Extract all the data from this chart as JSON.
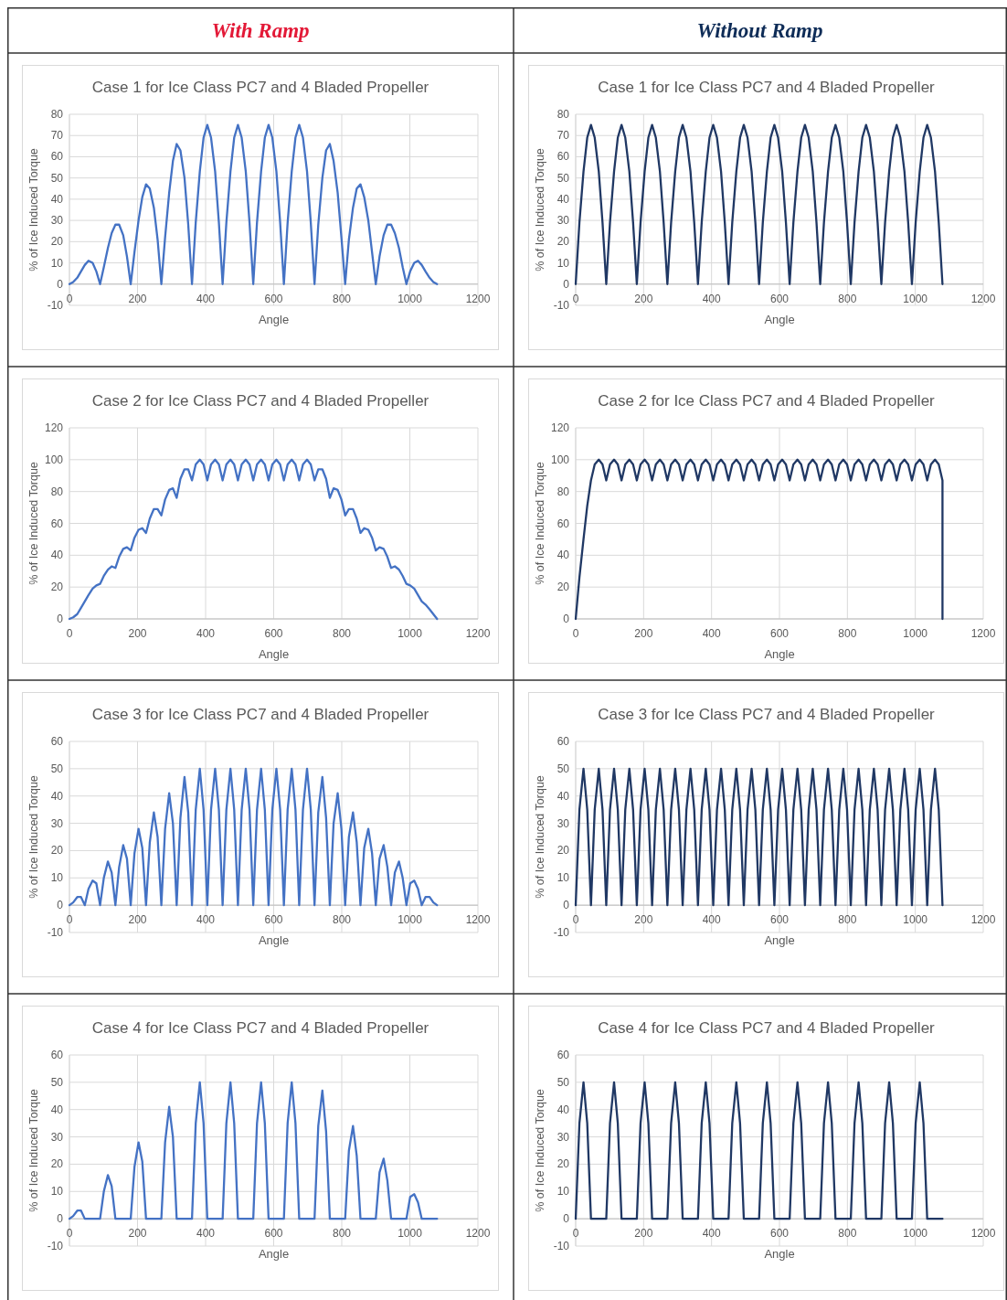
{
  "chart_data": [
    {
      "type": "other",
      "title": "With Ramp"
    },
    {
      "type": "other",
      "title": "Without Ramp"
    },
    {
      "type": "line",
      "title": "Case 1 for Ice Class PC7 and 4 Bladed Propeller",
      "xlabel": "Angle",
      "ylabel": "% of Ice Induced Torque",
      "xlim": [
        0,
        1200
      ],
      "xticks": [
        0,
        200,
        400,
        600,
        800,
        1000,
        1200
      ],
      "ylim": [
        -10,
        80
      ],
      "yticks": [
        -10,
        0,
        10,
        20,
        30,
        40,
        50,
        60,
        70,
        80
      ],
      "grid": true,
      "x": [
        0,
        11,
        23,
        34,
        45,
        56,
        68,
        79,
        90,
        101,
        113,
        124,
        135,
        146,
        158,
        169,
        180,
        191,
        203,
        214,
        225,
        236,
        248,
        259,
        270,
        281,
        293,
        304,
        315,
        326,
        338,
        349,
        360,
        371,
        383,
        394,
        405,
        416,
        428,
        439,
        450,
        461,
        473,
        484,
        495,
        506,
        518,
        529,
        540,
        551,
        563,
        574,
        585,
        596,
        608,
        619,
        630,
        641,
        653,
        664,
        675,
        686,
        698,
        709,
        720,
        731,
        743,
        754,
        765,
        776,
        788,
        799,
        810,
        821,
        833,
        844,
        855,
        866,
        878,
        889,
        900,
        911,
        923,
        934,
        945,
        956,
        968,
        979,
        990,
        1001,
        1013,
        1024,
        1035,
        1046,
        1058,
        1069,
        1080
      ],
      "series": [
        {
          "color": "#4472c4",
          "values": [
            0,
            1,
            3,
            6,
            9,
            11,
            10,
            6,
            0,
            8,
            17,
            24,
            28,
            28,
            23,
            13,
            0,
            15,
            30,
            41,
            47,
            45,
            36,
            21,
            0,
            22,
            43,
            58,
            66,
            63,
            50,
            28,
            0,
            29,
            53,
            69,
            75,
            69,
            53,
            29,
            0,
            29,
            53,
            69,
            75,
            69,
            53,
            29,
            0,
            29,
            53,
            69,
            75,
            69,
            53,
            29,
            0,
            29,
            53,
            69,
            75,
            69,
            53,
            29,
            0,
            28,
            50,
            63,
            66,
            58,
            43,
            22,
            0,
            21,
            36,
            45,
            47,
            41,
            30,
            15,
            0,
            13,
            23,
            28,
            28,
            24,
            17,
            8,
            0,
            6,
            10,
            11,
            9,
            6,
            3,
            1,
            0
          ]
        }
      ]
    },
    {
      "type": "line",
      "title": "Case 1 for Ice Class PC7 and 4 Bladed Propeller",
      "xlabel": "Angle",
      "ylabel": "% of Ice Induced Torque",
      "xlim": [
        0,
        1200
      ],
      "xticks": [
        0,
        200,
        400,
        600,
        800,
        1000,
        1200
      ],
      "ylim": [
        -10,
        80
      ],
      "yticks": [
        -10,
        0,
        10,
        20,
        30,
        40,
        50,
        60,
        70,
        80
      ],
      "grid": true,
      "x": [
        0,
        11,
        23,
        34,
        45,
        56,
        68,
        79,
        90,
        101,
        113,
        124,
        135,
        146,
        158,
        169,
        180,
        191,
        203,
        214,
        225,
        236,
        248,
        259,
        270,
        281,
        293,
        304,
        315,
        326,
        338,
        349,
        360,
        371,
        383,
        394,
        405,
        416,
        428,
        439,
        450,
        461,
        473,
        484,
        495,
        506,
        518,
        529,
        540,
        551,
        563,
        574,
        585,
        596,
        608,
        619,
        630,
        641,
        653,
        664,
        675,
        686,
        698,
        709,
        720,
        731,
        743,
        754,
        765,
        776,
        788,
        799,
        810,
        821,
        833,
        844,
        855,
        866,
        878,
        889,
        900,
        911,
        923,
        934,
        945,
        956,
        968,
        979,
        990,
        1001,
        1013,
        1024,
        1035,
        1046,
        1058,
        1069,
        1080
      ],
      "series": [
        {
          "color": "#203864",
          "values": [
            0,
            29,
            53,
            69,
            75,
            69,
            53,
            29,
            0,
            29,
            53,
            69,
            75,
            69,
            53,
            29,
            0,
            29,
            53,
            69,
            75,
            69,
            53,
            29,
            0,
            29,
            53,
            69,
            75,
            69,
            53,
            29,
            0,
            29,
            53,
            69,
            75,
            69,
            53,
            29,
            0,
            29,
            53,
            69,
            75,
            69,
            53,
            29,
            0,
            29,
            53,
            69,
            75,
            69,
            53,
            29,
            0,
            29,
            53,
            69,
            75,
            69,
            53,
            29,
            0,
            29,
            53,
            69,
            75,
            69,
            53,
            29,
            0,
            29,
            53,
            69,
            75,
            69,
            53,
            29,
            0,
            29,
            53,
            69,
            75,
            69,
            53,
            29,
            0,
            29,
            53,
            69,
            75,
            69,
            53,
            29,
            0
          ]
        }
      ]
    },
    {
      "type": "line",
      "title": "Case 2 for Ice Class PC7 and 4 Bladed Propeller",
      "xlabel": "Angle",
      "ylabel": "% of Ice Induced Torque",
      "xlim": [
        0,
        1200
      ],
      "xticks": [
        0,
        200,
        400,
        600,
        800,
        1000,
        1200
      ],
      "ylim": [
        0,
        120
      ],
      "yticks": [
        0,
        20,
        40,
        60,
        80,
        100,
        120
      ],
      "grid": true,
      "x": [
        0,
        11,
        23,
        34,
        45,
        56,
        68,
        79,
        90,
        101,
        113,
        124,
        135,
        146,
        158,
        169,
        180,
        191,
        203,
        214,
        225,
        236,
        248,
        259,
        270,
        281,
        293,
        304,
        315,
        326,
        338,
        349,
        360,
        371,
        383,
        394,
        405,
        416,
        428,
        439,
        450,
        461,
        473,
        484,
        495,
        506,
        518,
        529,
        540,
        551,
        563,
        574,
        585,
        596,
        608,
        619,
        630,
        641,
        653,
        664,
        675,
        686,
        698,
        709,
        720,
        731,
        743,
        754,
        765,
        776,
        788,
        799,
        810,
        821,
        833,
        844,
        855,
        866,
        878,
        889,
        900,
        911,
        923,
        934,
        945,
        956,
        968,
        979,
        990,
        1001,
        1013,
        1024,
        1035,
        1046,
        1058,
        1069,
        1080
      ],
      "series": [
        {
          "color": "#4472c4",
          "values": [
            0,
            1,
            3,
            7,
            11,
            15,
            19,
            21,
            22,
            27,
            31,
            33,
            32,
            39,
            44,
            45,
            43,
            51,
            56,
            57,
            54,
            63,
            69,
            69,
            65,
            75,
            81,
            82,
            76,
            88,
            94,
            94,
            87,
            97,
            100,
            97,
            87,
            97,
            100,
            97,
            87,
            97,
            100,
            97,
            87,
            97,
            100,
            97,
            87,
            97,
            100,
            97,
            87,
            97,
            100,
            97,
            87,
            97,
            100,
            97,
            87,
            97,
            100,
            97,
            87,
            94,
            94,
            88,
            76,
            82,
            81,
            75,
            65,
            69,
            69,
            63,
            54,
            57,
            56,
            51,
            43,
            45,
            44,
            39,
            32,
            33,
            31,
            27,
            22,
            21,
            19,
            15,
            11,
            9,
            6,
            3,
            0
          ]
        }
      ]
    },
    {
      "type": "line",
      "title": "Case 2 for Ice Class PC7 and 4 Bladed Propeller",
      "xlabel": "Angle",
      "ylabel": "% of Ice Induced Torque",
      "xlim": [
        0,
        1200
      ],
      "xticks": [
        0,
        200,
        400,
        600,
        800,
        1000,
        1200
      ],
      "ylim": [
        0,
        120
      ],
      "yticks": [
        0,
        20,
        40,
        60,
        80,
        100,
        120
      ],
      "grid": true,
      "x": [
        0,
        11,
        23,
        34,
        45,
        56,
        68,
        79,
        90,
        101,
        113,
        124,
        135,
        146,
        158,
        169,
        180,
        191,
        203,
        214,
        225,
        236,
        248,
        259,
        270,
        281,
        293,
        304,
        315,
        326,
        338,
        349,
        360,
        371,
        383,
        394,
        405,
        416,
        428,
        439,
        450,
        461,
        473,
        484,
        495,
        506,
        518,
        529,
        540,
        551,
        563,
        574,
        585,
        596,
        608,
        619,
        630,
        641,
        653,
        664,
        675,
        686,
        698,
        709,
        720,
        731,
        743,
        754,
        765,
        776,
        788,
        799,
        810,
        821,
        833,
        844,
        855,
        866,
        878,
        889,
        900,
        911,
        923,
        934,
        945,
        956,
        968,
        979,
        990,
        1001,
        1013,
        1024,
        1035,
        1046,
        1058,
        1069,
        1080,
        1080
      ],
      "series": [
        {
          "color": "#203864",
          "values": [
            0,
            26,
            50,
            71,
            87,
            97,
            100,
            97,
            87,
            97,
            100,
            97,
            87,
            97,
            100,
            97,
            87,
            97,
            100,
            97,
            87,
            97,
            100,
            97,
            87,
            97,
            100,
            97,
            87,
            97,
            100,
            97,
            87,
            97,
            100,
            97,
            87,
            97,
            100,
            97,
            87,
            97,
            100,
            97,
            87,
            97,
            100,
            97,
            87,
            97,
            100,
            97,
            87,
            97,
            100,
            97,
            87,
            97,
            100,
            97,
            87,
            97,
            100,
            97,
            87,
            97,
            100,
            97,
            87,
            97,
            100,
            97,
            87,
            97,
            100,
            97,
            87,
            97,
            100,
            97,
            87,
            97,
            100,
            97,
            87,
            97,
            100,
            97,
            87,
            97,
            100,
            97,
            87,
            97,
            100,
            97,
            87,
            0
          ]
        }
      ]
    },
    {
      "type": "line",
      "title": "Case 3 for Ice Class PC7 and 4 Bladed Propeller",
      "xlabel": "Angle",
      "ylabel": "% of Ice Induced Torque",
      "xlim": [
        0,
        1200
      ],
      "xticks": [
        0,
        200,
        400,
        600,
        800,
        1000,
        1200
      ],
      "ylim": [
        -10,
        60
      ],
      "yticks": [
        -10,
        0,
        10,
        20,
        30,
        40,
        50,
        60
      ],
      "grid": true,
      "x": [
        0,
        11,
        23,
        34,
        45,
        56,
        68,
        79,
        90,
        101,
        113,
        124,
        135,
        146,
        158,
        169,
        180,
        191,
        203,
        214,
        225,
        236,
        248,
        259,
        270,
        281,
        293,
        304,
        315,
        326,
        338,
        349,
        360,
        371,
        383,
        394,
        405,
        416,
        428,
        439,
        450,
        461,
        473,
        484,
        495,
        506,
        518,
        529,
        540,
        551,
        563,
        574,
        585,
        596,
        608,
        619,
        630,
        641,
        653,
        664,
        675,
        686,
        698,
        709,
        720,
        731,
        743,
        754,
        765,
        776,
        788,
        799,
        810,
        821,
        833,
        844,
        855,
        866,
        878,
        889,
        900,
        911,
        923,
        934,
        945,
        956,
        968,
        979,
        990,
        1001,
        1013,
        1024,
        1035,
        1046,
        1058,
        1069,
        1080
      ],
      "series": [
        {
          "color": "#4472c4",
          "values": [
            0,
            1,
            3,
            3,
            0,
            6,
            9,
            8,
            0,
            10,
            16,
            12,
            0,
            14,
            22,
            17,
            0,
            19,
            28,
            21,
            0,
            23,
            34,
            25,
            0,
            28,
            41,
            30,
            0,
            32,
            47,
            34,
            0,
            35,
            50,
            35,
            0,
            35,
            50,
            35,
            0,
            35,
            50,
            35,
            0,
            35,
            50,
            35,
            0,
            35,
            50,
            35,
            0,
            35,
            50,
            35,
            0,
            35,
            50,
            35,
            0,
            35,
            50,
            35,
            0,
            34,
            47,
            32,
            0,
            30,
            41,
            28,
            0,
            25,
            34,
            23,
            0,
            21,
            28,
            19,
            0,
            17,
            22,
            14,
            0,
            12,
            16,
            10,
            0,
            8,
            9,
            6,
            0,
            3,
            3,
            1,
            0
          ]
        }
      ]
    },
    {
      "type": "line",
      "title": "Case 3 for Ice Class PC7 and 4 Bladed Propeller",
      "xlabel": "Angle",
      "ylabel": "% of Ice Induced Torque",
      "xlim": [
        0,
        1200
      ],
      "xticks": [
        0,
        200,
        400,
        600,
        800,
        1000,
        1200
      ],
      "ylim": [
        -10,
        60
      ],
      "yticks": [
        -10,
        0,
        10,
        20,
        30,
        40,
        50,
        60
      ],
      "grid": true,
      "x": [
        0,
        11,
        23,
        34,
        45,
        56,
        68,
        79,
        90,
        101,
        113,
        124,
        135,
        146,
        158,
        169,
        180,
        191,
        203,
        214,
        225,
        236,
        248,
        259,
        270,
        281,
        293,
        304,
        315,
        326,
        338,
        349,
        360,
        371,
        383,
        394,
        405,
        416,
        428,
        439,
        450,
        461,
        473,
        484,
        495,
        506,
        518,
        529,
        540,
        551,
        563,
        574,
        585,
        596,
        608,
        619,
        630,
        641,
        653,
        664,
        675,
        686,
        698,
        709,
        720,
        731,
        743,
        754,
        765,
        776,
        788,
        799,
        810,
        821,
        833,
        844,
        855,
        866,
        878,
        889,
        900,
        911,
        923,
        934,
        945,
        956,
        968,
        979,
        990,
        1001,
        1013,
        1024,
        1035,
        1046,
        1058,
        1069,
        1080
      ],
      "series": [
        {
          "color": "#203864",
          "values": [
            0,
            35,
            50,
            35,
            0,
            35,
            50,
            35,
            0,
            35,
            50,
            35,
            0,
            35,
            50,
            35,
            0,
            35,
            50,
            35,
            0,
            35,
            50,
            35,
            0,
            35,
            50,
            35,
            0,
            35,
            50,
            35,
            0,
            35,
            50,
            35,
            0,
            35,
            50,
            35,
            0,
            35,
            50,
            35,
            0,
            35,
            50,
            35,
            0,
            35,
            50,
            35,
            0,
            35,
            50,
            35,
            0,
            35,
            50,
            35,
            0,
            35,
            50,
            35,
            0,
            35,
            50,
            35,
            0,
            35,
            50,
            35,
            0,
            35,
            50,
            35,
            0,
            35,
            50,
            35,
            0,
            35,
            50,
            35,
            0,
            35,
            50,
            35,
            0,
            35,
            50,
            35,
            0,
            35,
            50,
            35,
            0
          ]
        }
      ]
    },
    {
      "type": "line",
      "title": "Case 4 for Ice Class PC7 and 4 Bladed Propeller",
      "xlabel": "Angle",
      "ylabel": "% of Ice Induced Torque",
      "xlim": [
        0,
        1200
      ],
      "xticks": [
        0,
        200,
        400,
        600,
        800,
        1000,
        1200
      ],
      "ylim": [
        -10,
        60
      ],
      "yticks": [
        -10,
        0,
        10,
        20,
        30,
        40,
        50,
        60
      ],
      "grid": true,
      "x": [
        0,
        11,
        23,
        34,
        45,
        56,
        68,
        79,
        90,
        101,
        113,
        124,
        135,
        146,
        158,
        169,
        180,
        191,
        203,
        214,
        225,
        236,
        248,
        259,
        270,
        281,
        293,
        304,
        315,
        326,
        338,
        349,
        360,
        371,
        383,
        394,
        405,
        416,
        428,
        439,
        450,
        461,
        473,
        484,
        495,
        506,
        518,
        529,
        540,
        551,
        563,
        574,
        585,
        596,
        608,
        619,
        630,
        641,
        653,
        664,
        675,
        686,
        698,
        709,
        720,
        731,
        743,
        754,
        765,
        776,
        788,
        799,
        810,
        821,
        833,
        844,
        855,
        866,
        878,
        889,
        900,
        911,
        923,
        934,
        945,
        956,
        968,
        979,
        990,
        1001,
        1013,
        1024,
        1035,
        1046,
        1058,
        1069,
        1080
      ],
      "series": [
        {
          "color": "#4472c4",
          "values": [
            0,
            1,
            3,
            3,
            0,
            0,
            0,
            0,
            0,
            10,
            16,
            12,
            0,
            0,
            0,
            0,
            0,
            19,
            28,
            21,
            0,
            0,
            0,
            0,
            0,
            28,
            41,
            30,
            0,
            0,
            0,
            0,
            0,
            35,
            50,
            35,
            0,
            0,
            0,
            0,
            0,
            35,
            50,
            35,
            0,
            0,
            0,
            0,
            0,
            35,
            50,
            35,
            0,
            0,
            0,
            0,
            0,
            35,
            50,
            35,
            0,
            0,
            0,
            0,
            0,
            34,
            47,
            32,
            0,
            0,
            0,
            0,
            0,
            25,
            34,
            23,
            0,
            0,
            0,
            0,
            0,
            17,
            22,
            14,
            0,
            0,
            0,
            0,
            0,
            8,
            9,
            6,
            0,
            0,
            0,
            0,
            0
          ]
        }
      ]
    },
    {
      "type": "line",
      "title": "Case 4 for Ice Class PC7 and 4 Bladed Propeller",
      "xlabel": "Angle",
      "ylabel": "% of Ice Induced Torque",
      "xlim": [
        0,
        1200
      ],
      "xticks": [
        0,
        200,
        400,
        600,
        800,
        1000,
        1200
      ],
      "ylim": [
        -10,
        60
      ],
      "yticks": [
        -10,
        0,
        10,
        20,
        30,
        40,
        50,
        60
      ],
      "grid": true,
      "x": [
        0,
        11,
        23,
        34,
        45,
        56,
        68,
        79,
        90,
        101,
        113,
        124,
        135,
        146,
        158,
        169,
        180,
        191,
        203,
        214,
        225,
        236,
        248,
        259,
        270,
        281,
        293,
        304,
        315,
        326,
        338,
        349,
        360,
        371,
        383,
        394,
        405,
        416,
        428,
        439,
        450,
        461,
        473,
        484,
        495,
        506,
        518,
        529,
        540,
        551,
        563,
        574,
        585,
        596,
        608,
        619,
        630,
        641,
        653,
        664,
        675,
        686,
        698,
        709,
        720,
        731,
        743,
        754,
        765,
        776,
        788,
        799,
        810,
        821,
        833,
        844,
        855,
        866,
        878,
        889,
        900,
        911,
        923,
        934,
        945,
        956,
        968,
        979,
        990,
        1001,
        1013,
        1024,
        1035,
        1046,
        1058,
        1069,
        1080
      ],
      "series": [
        {
          "color": "#203864",
          "values": [
            0,
            35,
            50,
            35,
            0,
            0,
            0,
            0,
            0,
            35,
            50,
            35,
            0,
            0,
            0,
            0,
            0,
            35,
            50,
            35,
            0,
            0,
            0,
            0,
            0,
            35,
            50,
            35,
            0,
            0,
            0,
            0,
            0,
            35,
            50,
            35,
            0,
            0,
            0,
            0,
            0,
            35,
            50,
            35,
            0,
            0,
            0,
            0,
            0,
            35,
            50,
            35,
            0,
            0,
            0,
            0,
            0,
            35,
            50,
            35,
            0,
            0,
            0,
            0,
            0,
            35,
            50,
            35,
            0,
            0,
            0,
            0,
            0,
            35,
            50,
            35,
            0,
            0,
            0,
            0,
            0,
            35,
            50,
            35,
            0,
            0,
            0,
            0,
            0,
            35,
            50,
            35,
            0,
            0,
            0,
            0,
            0
          ]
        }
      ]
    }
  ]
}
